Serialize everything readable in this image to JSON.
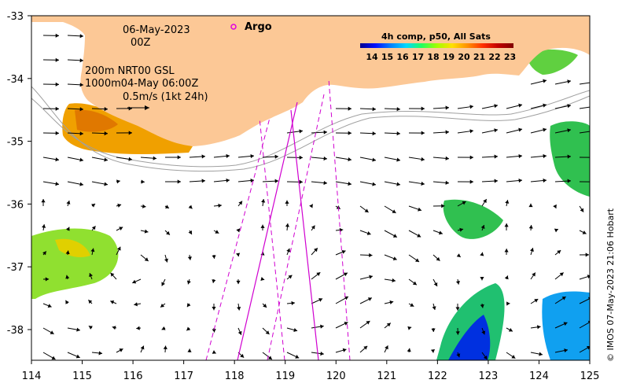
{
  "header": {
    "date": "06-May-2023",
    "hour": "00Z",
    "layer_line": "200m  NRT00 GSL",
    "isobath_line": "1000m04-May 06:00Z",
    "scale_line": "0.5m/s (1kt 24h)"
  },
  "legend": {
    "argo_label": "Argo",
    "argo_color": "#e000e0"
  },
  "colorbar": {
    "title": "4h comp, p50, All Sats",
    "ticks": [
      "14",
      "15",
      "16",
      "17",
      "18",
      "19",
      "20",
      "21",
      "22",
      "23"
    ],
    "colors": [
      "#00008f",
      "#0010ff",
      "#0080ff",
      "#00d8ff",
      "#20ff60",
      "#a0ff00",
      "#ffe000",
      "#ff9000",
      "#ff3000",
      "#c00000",
      "#800000"
    ]
  },
  "axes": {
    "x_ticks": [
      "114",
      "115",
      "116",
      "117",
      "118",
      "119",
      "120",
      "121",
      "122",
      "123",
      "124",
      "125"
    ],
    "y_ticks": [
      "-33",
      "-34",
      "-35",
      "-36",
      "-37",
      "-38"
    ]
  },
  "credit": "© IMOS 07-May-2023 21:06 Hobart",
  "colors": {
    "land": "#fcc896",
    "track": "#d000d0",
    "isobath": "#a0a0a0"
  }
}
